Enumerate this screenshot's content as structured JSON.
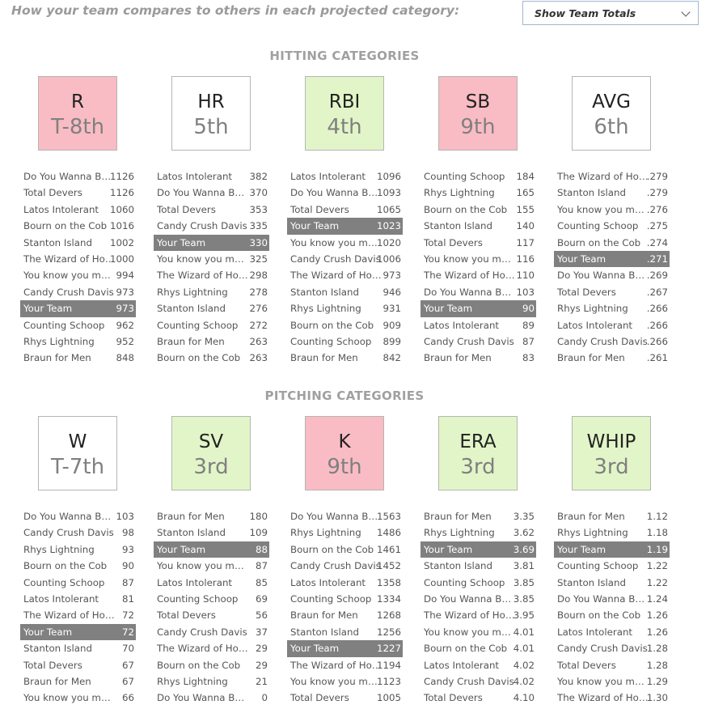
{
  "header": {
    "title": "How your team compares to others in each projected category:",
    "select_value": "Show Team Totals"
  },
  "hitting": {
    "title": "HITTING CATEGORIES",
    "categories": [
      {
        "name": "R",
        "rank": "T-8th",
        "color": "red",
        "rows": [
          {
            "team": "Do You Wanna Build a Snowman",
            "value": "1126"
          },
          {
            "team": "Total Devers",
            "value": "1126"
          },
          {
            "team": "Latos Intolerant",
            "value": "1060"
          },
          {
            "team": "Bourn on the Cob",
            "value": "1016"
          },
          {
            "team": "Stanton Island",
            "value": "1002"
          },
          {
            "team": "The Wizard of Hoskins",
            "value": "1000"
          },
          {
            "team": "You know you make me wanna",
            "value": "994"
          },
          {
            "team": "Candy Crush Davis",
            "value": "973"
          },
          {
            "team": "Your Team",
            "value": "973",
            "mine": true
          },
          {
            "team": "Counting Schoop",
            "value": "962"
          },
          {
            "team": "Rhys Lightning",
            "value": "952"
          },
          {
            "team": "Braun for Men",
            "value": "848"
          }
        ]
      },
      {
        "name": "HR",
        "rank": "5th",
        "color": "white",
        "rows": [
          {
            "team": "Latos Intolerant",
            "value": "382"
          },
          {
            "team": "Do You Wanna Build a Snowman",
            "value": "370"
          },
          {
            "team": "Total Devers",
            "value": "353"
          },
          {
            "team": "Candy Crush Davis",
            "value": "335"
          },
          {
            "team": "Your Team",
            "value": "330",
            "mine": true
          },
          {
            "team": "You know you make me wanna",
            "value": "325"
          },
          {
            "team": "The Wizard of Hoskins",
            "value": "298"
          },
          {
            "team": "Rhys Lightning",
            "value": "278"
          },
          {
            "team": "Stanton Island",
            "value": "276"
          },
          {
            "team": "Counting Schoop",
            "value": "272"
          },
          {
            "team": "Braun for Men",
            "value": "263"
          },
          {
            "team": "Bourn on the Cob",
            "value": "263"
          }
        ]
      },
      {
        "name": "RBI",
        "rank": "4th",
        "color": "green",
        "rows": [
          {
            "team": "Latos Intolerant",
            "value": "1096"
          },
          {
            "team": "Do You Wanna Build a Snowman",
            "value": "1093"
          },
          {
            "team": "Total Devers",
            "value": "1065"
          },
          {
            "team": "Your Team",
            "value": "1023",
            "mine": true
          },
          {
            "team": "You know you make me wanna",
            "value": "1020"
          },
          {
            "team": "Candy Crush Davis",
            "value": "1006"
          },
          {
            "team": "The Wizard of Hoskins",
            "value": "973"
          },
          {
            "team": "Stanton Island",
            "value": "946"
          },
          {
            "team": "Rhys Lightning",
            "value": "931"
          },
          {
            "team": "Bourn on the Cob",
            "value": "909"
          },
          {
            "team": "Counting Schoop",
            "value": "899"
          },
          {
            "team": "Braun for Men",
            "value": "842"
          }
        ]
      },
      {
        "name": "SB",
        "rank": "9th",
        "color": "red",
        "rows": [
          {
            "team": "Counting Schoop",
            "value": "184"
          },
          {
            "team": "Rhys Lightning",
            "value": "165"
          },
          {
            "team": "Bourn on the Cob",
            "value": "155"
          },
          {
            "team": "Stanton Island",
            "value": "140"
          },
          {
            "team": "Total Devers",
            "value": "117"
          },
          {
            "team": "You know you make me wanna",
            "value": "116"
          },
          {
            "team": "The Wizard of Hoskins",
            "value": "110"
          },
          {
            "team": "Do You Wanna Build a Snowman",
            "value": "103"
          },
          {
            "team": "Your Team",
            "value": "90",
            "mine": true
          },
          {
            "team": "Latos Intolerant",
            "value": "89"
          },
          {
            "team": "Candy Crush Davis",
            "value": "87"
          },
          {
            "team": "Braun for Men",
            "value": "83"
          }
        ]
      },
      {
        "name": "AVG",
        "rank": "6th",
        "color": "white",
        "rows": [
          {
            "team": "The Wizard of Hoskins",
            "value": ".279"
          },
          {
            "team": "Stanton Island",
            "value": ".279"
          },
          {
            "team": "You know you make me wanna",
            "value": ".276"
          },
          {
            "team": "Counting Schoop",
            "value": ".275"
          },
          {
            "team": "Bourn on the Cob",
            "value": ".274"
          },
          {
            "team": "Your Team",
            "value": ".271",
            "mine": true
          },
          {
            "team": "Do You Wanna Build a Snowman",
            "value": ".269"
          },
          {
            "team": "Total Devers",
            "value": ".267"
          },
          {
            "team": "Rhys Lightning",
            "value": ".266"
          },
          {
            "team": "Latos Intolerant",
            "value": ".266"
          },
          {
            "team": "Candy Crush Davis",
            "value": ".266"
          },
          {
            "team": "Braun for Men",
            "value": ".261"
          }
        ]
      }
    ]
  },
  "pitching": {
    "title": "PITCHING CATEGORIES",
    "categories": [
      {
        "name": "W",
        "rank": "T-7th",
        "color": "white",
        "rows": [
          {
            "team": "Do You Wanna Build a Snowman",
            "value": "103"
          },
          {
            "team": "Candy Crush Davis",
            "value": "98"
          },
          {
            "team": "Rhys Lightning",
            "value": "93"
          },
          {
            "team": "Bourn on the Cob",
            "value": "90"
          },
          {
            "team": "Counting Schoop",
            "value": "87"
          },
          {
            "team": "Latos Intolerant",
            "value": "81"
          },
          {
            "team": "The Wizard of Hoskins",
            "value": "72"
          },
          {
            "team": "Your Team",
            "value": "72",
            "mine": true
          },
          {
            "team": "Stanton Island",
            "value": "70"
          },
          {
            "team": "Total Devers",
            "value": "67"
          },
          {
            "team": "Braun for Men",
            "value": "67"
          },
          {
            "team": "You know you make me wanna",
            "value": "66"
          }
        ]
      },
      {
        "name": "SV",
        "rank": "3rd",
        "color": "green",
        "rows": [
          {
            "team": "Braun for Men",
            "value": "180"
          },
          {
            "team": "Stanton Island",
            "value": "109"
          },
          {
            "team": "Your Team",
            "value": "88",
            "mine": true
          },
          {
            "team": "You know you make me wanna",
            "value": "87"
          },
          {
            "team": "Latos Intolerant",
            "value": "85"
          },
          {
            "team": "Counting Schoop",
            "value": "69"
          },
          {
            "team": "Total Devers",
            "value": "56"
          },
          {
            "team": "Candy Crush Davis",
            "value": "37"
          },
          {
            "team": "The Wizard of Hoskins",
            "value": "29"
          },
          {
            "team": "Bourn on the Cob",
            "value": "29"
          },
          {
            "team": "Rhys Lightning",
            "value": "21"
          },
          {
            "team": "Do You Wanna Build a Snowman",
            "value": "0"
          }
        ]
      },
      {
        "name": "K",
        "rank": "9th",
        "color": "red",
        "rows": [
          {
            "team": "Do You Wanna Build a Snowman",
            "value": "1563"
          },
          {
            "team": "Rhys Lightning",
            "value": "1486"
          },
          {
            "team": "Bourn on the Cob",
            "value": "1461"
          },
          {
            "team": "Candy Crush Davis",
            "value": "1452"
          },
          {
            "team": "Latos Intolerant",
            "value": "1358"
          },
          {
            "team": "Counting Schoop",
            "value": "1334"
          },
          {
            "team": "Braun for Men",
            "value": "1268"
          },
          {
            "team": "Stanton Island",
            "value": "1256"
          },
          {
            "team": "Your Team",
            "value": "1227",
            "mine": true
          },
          {
            "team": "The Wizard of Hoskins",
            "value": "1194"
          },
          {
            "team": "You know you make me wanna",
            "value": "1123"
          },
          {
            "team": "Total Devers",
            "value": "1005"
          }
        ]
      },
      {
        "name": "ERA",
        "rank": "3rd",
        "color": "green",
        "rows": [
          {
            "team": "Braun for Men",
            "value": "3.35"
          },
          {
            "team": "Rhys Lightning",
            "value": "3.62"
          },
          {
            "team": "Your Team",
            "value": "3.69",
            "mine": true
          },
          {
            "team": "Stanton Island",
            "value": "3.81"
          },
          {
            "team": "Counting Schoop",
            "value": "3.85"
          },
          {
            "team": "Do You Wanna Build a Snowman",
            "value": "3.85"
          },
          {
            "team": "The Wizard of Hoskins",
            "value": "3.95"
          },
          {
            "team": "You know you make me wanna",
            "value": "4.01"
          },
          {
            "team": "Bourn on the Cob",
            "value": "4.01"
          },
          {
            "team": "Latos Intolerant",
            "value": "4.02"
          },
          {
            "team": "Candy Crush Davis",
            "value": "4.02"
          },
          {
            "team": "Total Devers",
            "value": "4.10"
          }
        ]
      },
      {
        "name": "WHIP",
        "rank": "3rd",
        "color": "green",
        "rows": [
          {
            "team": "Braun for Men",
            "value": "1.12"
          },
          {
            "team": "Rhys Lightning",
            "value": "1.18"
          },
          {
            "team": "Your Team",
            "value": "1.19",
            "mine": true
          },
          {
            "team": "Counting Schoop",
            "value": "1.22"
          },
          {
            "team": "Stanton Island",
            "value": "1.22"
          },
          {
            "team": "Do You Wanna Build a Snowman",
            "value": "1.24"
          },
          {
            "team": "Bourn on the Cob",
            "value": "1.26"
          },
          {
            "team": "Latos Intolerant",
            "value": "1.26"
          },
          {
            "team": "Candy Crush Davis",
            "value": "1.28"
          },
          {
            "team": "Total Devers",
            "value": "1.28"
          },
          {
            "team": "You know you make me wanna",
            "value": "1.29"
          },
          {
            "team": "The Wizard of Hoskins",
            "value": "1.30"
          }
        ]
      }
    ]
  }
}
